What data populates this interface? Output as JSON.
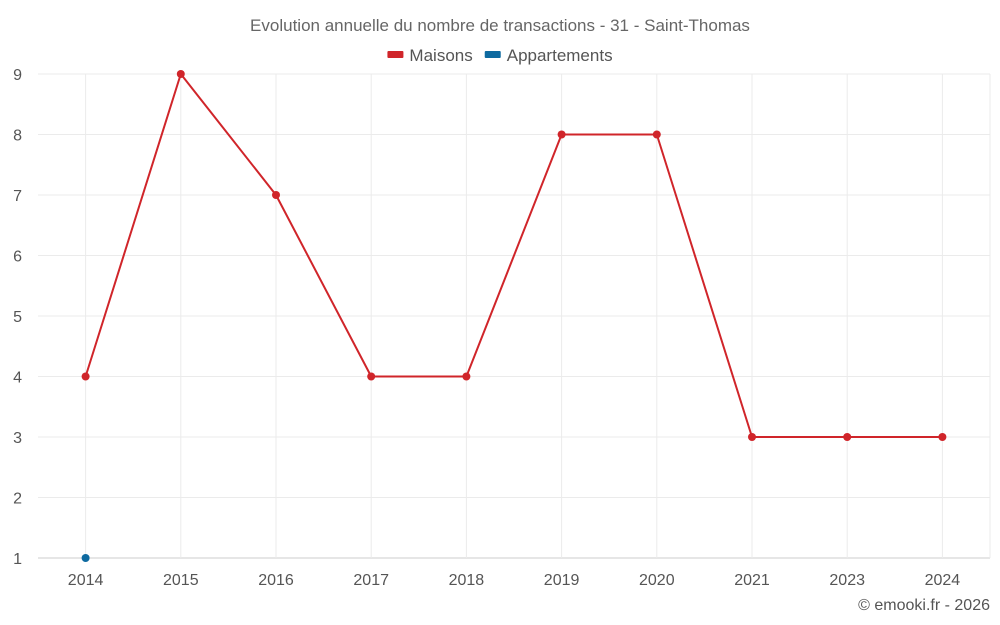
{
  "chart_data": {
    "type": "line",
    "title": "Evolution annuelle du nombre de transactions - 31 - Saint-Thomas",
    "categories": [
      "2014",
      "2015",
      "2016",
      "2017",
      "2018",
      "2019",
      "2020",
      "2021",
      "2023",
      "2024"
    ],
    "ylim": [
      1,
      9
    ],
    "yticks": [
      1,
      2,
      3,
      4,
      5,
      6,
      7,
      8,
      9
    ],
    "grid": true,
    "legend_position": "top-center",
    "series": [
      {
        "name": "Maisons",
        "color": "#d0252a",
        "values": [
          4,
          9,
          7,
          4,
          4,
          8,
          8,
          3,
          3,
          3
        ]
      },
      {
        "name": "Appartements",
        "color": "#0e6aa0",
        "values": [
          1,
          null,
          null,
          null,
          null,
          null,
          null,
          null,
          null,
          null
        ]
      }
    ]
  },
  "credit": "© emooki.fr - 2026"
}
